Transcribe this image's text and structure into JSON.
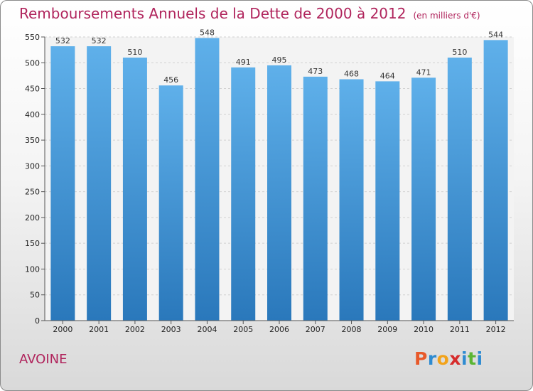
{
  "header": {
    "title": "Remboursements Annuels de la Dette de 2000 à 2012",
    "unit": "(en milliers d'€)"
  },
  "footer": {
    "commune": "AVOINE",
    "brand": [
      "P",
      "r",
      "o",
      "x",
      "i",
      "t",
      "i"
    ]
  },
  "colors": {
    "title": "#b0245c",
    "bar_top": "#5fb0ea",
    "bar_bottom": "#2a78bb",
    "brand": [
      "#e8592a",
      "#2e8bd1",
      "#f2a31b",
      "#d62c2c",
      "#2e8bd1",
      "#5bb534",
      "#2e8bd1"
    ]
  },
  "chart_data": {
    "type": "bar",
    "title": "Remboursements Annuels de la Dette de 2000 à 2012",
    "categories": [
      "2000",
      "2001",
      "2002",
      "2003",
      "2004",
      "2005",
      "2006",
      "2007",
      "2008",
      "2009",
      "2010",
      "2011",
      "2012"
    ],
    "values": [
      532,
      532,
      510,
      456,
      548,
      491,
      495,
      473,
      468,
      464,
      471,
      510,
      544
    ],
    "ylim": [
      0,
      550
    ],
    "yticks": [
      0,
      50,
      100,
      150,
      200,
      250,
      300,
      350,
      400,
      450,
      500,
      550
    ],
    "grid": true
  }
}
